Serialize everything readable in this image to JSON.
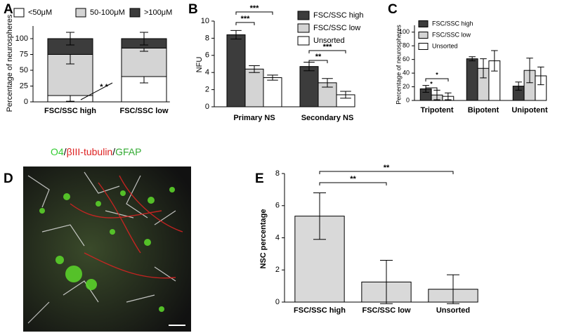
{
  "chart_data": [
    {
      "type": "stacked_bar",
      "panel": "A",
      "ylabel": "Percentage of neurospheres",
      "categories": [
        "FSC/SSC high",
        "FSC/SSC low"
      ],
      "series": [
        {
          "name": "<50μM",
          "color": "#ffffff",
          "values": [
            10,
            40
          ],
          "errors": [
            9,
            10
          ]
        },
        {
          "name": "50-100μM",
          "color": "#d4d4d4",
          "values": [
            65,
            45
          ],
          "errors": [
            15,
            5
          ]
        },
        {
          "name": ">100μM",
          "color": "#3c3c3c",
          "values": [
            25,
            15
          ],
          "errors": [
            10,
            10
          ]
        }
      ],
      "ylim": [
        0,
        120
      ],
      "yticks": [
        0,
        25,
        50,
        75,
        100
      ],
      "annotations": [
        "* *"
      ]
    },
    {
      "type": "bar",
      "panel": "B",
      "ylabel": "NFU",
      "categories": [
        "Primary NS",
        "Secondary NS"
      ],
      "series": [
        {
          "name": "FSC/SSC high",
          "color": "#3c3c3c",
          "values": [
            8.4,
            4.7
          ],
          "errors": [
            0.5,
            0.5
          ]
        },
        {
          "name": "FSC/SSC low",
          "color": "#d4d4d4",
          "values": [
            4.4,
            2.8
          ],
          "errors": [
            0.4,
            0.5
          ]
        },
        {
          "name": "Unsorted",
          "color": "#ffffff",
          "values": [
            3.4,
            1.4
          ],
          "errors": [
            0.3,
            0.4
          ]
        }
      ],
      "ylim": [
        0,
        10
      ],
      "yticks": [
        0,
        2,
        4,
        6,
        8,
        10
      ],
      "annotations": [
        "***",
        "***",
        "**",
        "***"
      ]
    },
    {
      "type": "bar",
      "panel": "C",
      "ylabel": "Percentage of neurospheres",
      "categories": [
        "Tripotent",
        "Bipotent",
        "Unipotent"
      ],
      "series": [
        {
          "name": "FSC/SSC high",
          "color": "#3c3c3c",
          "values": [
            17,
            61,
            21
          ],
          "errors": [
            5,
            3,
            6
          ]
        },
        {
          "name": "FSC/SSC low",
          "color": "#d4d4d4",
          "values": [
            8,
            47,
            44
          ],
          "errors": [
            7,
            14,
            18
          ]
        },
        {
          "name": "Unsorted",
          "color": "#ffffff",
          "values": [
            6,
            58,
            36
          ],
          "errors": [
            5,
            15,
            13
          ]
        }
      ],
      "ylim": [
        0,
        110
      ],
      "yticks": [
        0,
        20,
        40,
        60,
        80,
        100
      ],
      "annotations": [
        "*",
        "*"
      ]
    },
    {
      "type": "bar",
      "panel": "E",
      "ylabel": "NSC percentage",
      "categories": [
        "FSC/SSC high",
        "FSC/SSC low",
        "Unsorted"
      ],
      "series": [
        {
          "color": "#d9d9d9",
          "values": [
            5.35,
            1.25,
            0.8
          ],
          "errors": [
            1.45,
            1.35,
            0.9
          ]
        }
      ],
      "ylim": [
        0,
        8
      ],
      "yticks": [
        0,
        2,
        4,
        6,
        8
      ],
      "annotations": [
        "**",
        "**"
      ]
    }
  ],
  "panel_d": {
    "panel": "D",
    "stain_labels": [
      "O4",
      "/",
      "βIII-tubulin",
      "/",
      "GFAP"
    ]
  }
}
